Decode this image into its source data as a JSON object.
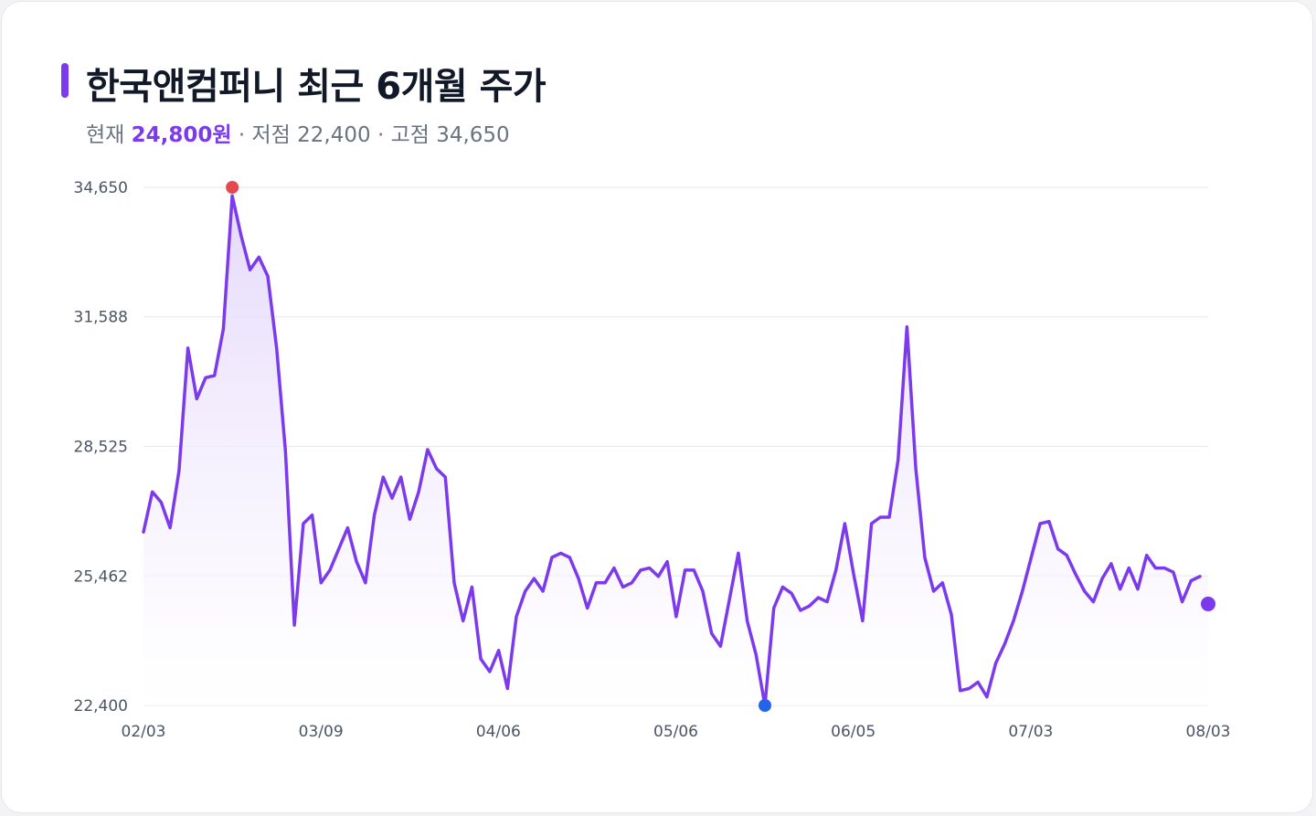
{
  "title": "한국앤컴퍼니 최근 6개월 주가",
  "subtitle": {
    "current_label": "현재",
    "current_value": "24,800원",
    "sep1": "·",
    "low_label": "저점",
    "low_value": "22,400",
    "sep2": "·",
    "high_label": "고점",
    "high_value": "34,650"
  },
  "colors": {
    "line": "#7c3aed",
    "area_top": "#e4d8fb",
    "max_marker": "#e5484d",
    "min_marker": "#2563eb",
    "last_marker": "#7c3aed",
    "grid": "#e5e7eb"
  },
  "chart_data": {
    "type": "area",
    "title": "한국앤컴퍼니 최근 6개월 주가",
    "xlabel": "",
    "ylabel": "",
    "ylim": [
      22400,
      34650
    ],
    "y_ticks": [
      22400,
      25462,
      28525,
      31588,
      34650
    ],
    "y_tick_labels": [
      "22,400",
      "25,462",
      "28,525",
      "31,588",
      "34,650"
    ],
    "x_tick_labels": [
      "02/03",
      "03/09",
      "04/06",
      "05/06",
      "06/05",
      "07/03",
      "08/03"
    ],
    "x_tick_index": [
      0,
      20,
      40,
      60,
      80,
      100,
      120
    ],
    "grid": true,
    "legend": "none",
    "series": [
      {
        "values": [
          26500,
          27450,
          27200,
          26600,
          27950,
          30850,
          29650,
          30150,
          30200,
          31300,
          34450,
          33500,
          32700,
          33000,
          32550,
          30850,
          28400,
          24300,
          26700,
          26900,
          25300,
          25600,
          26100,
          26600,
          25800,
          25300,
          26900,
          27800,
          27300,
          27800,
          26800,
          27450,
          28450,
          28000,
          27800,
          25300,
          24400,
          25200,
          23500,
          23200,
          23700,
          22800,
          24500,
          25100,
          25400,
          25100,
          25900,
          26000,
          25900,
          25400,
          24700,
          25300,
          25300,
          25650,
          25200,
          25300,
          25600,
          25650,
          25450,
          25800,
          24500,
          25600,
          25600,
          25100,
          24100,
          23800,
          24900,
          26000,
          24400,
          23600,
          22400,
          24700,
          25200,
          25050,
          24650,
          24750,
          24950,
          24850,
          25600,
          26700,
          25500,
          24400,
          26700,
          26850,
          26850,
          28200,
          31350,
          28000,
          25900,
          25100,
          25300,
          24550,
          22750,
          22800,
          22950,
          22600,
          23400,
          23850,
          24400,
          25100,
          25900,
          26700,
          26750,
          26100,
          25950,
          25500,
          25100,
          24850,
          25400,
          25750,
          25150,
          25650,
          25150,
          25950,
          25650,
          25650,
          25550,
          24850,
          25350,
          25450
        ]
      }
    ],
    "markers": {
      "max": {
        "index": 10,
        "value": 34650
      },
      "min": {
        "index": 70,
        "value": 22400
      },
      "last": {
        "index": 121,
        "value": 24800
      }
    }
  }
}
